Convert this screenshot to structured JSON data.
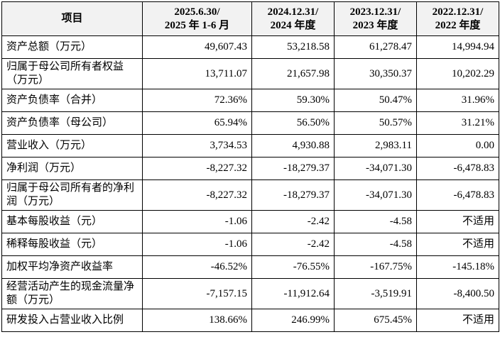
{
  "table": {
    "header": [
      [
        "项目"
      ],
      [
        "2025.6.30/",
        "2025 年 1-6 月"
      ],
      [
        "2024.12.31/",
        "2024 年度"
      ],
      [
        "2023.12.31/",
        "2023 年度"
      ],
      [
        "2022.12.31/",
        "2022 年度"
      ]
    ],
    "rows": [
      [
        "资产总额（万元）",
        "49,607.43",
        "53,218.58",
        "61,278.47",
        "14,994.94"
      ],
      [
        "归属于母公司所有者权益（万元）",
        "13,711.07",
        "21,657.98",
        "30,350.37",
        "10,202.29"
      ],
      [
        "资产负债率（合并）",
        "72.36%",
        "59.30%",
        "50.47%",
        "31.96%"
      ],
      [
        "资产负债率（母公司）",
        "65.94%",
        "56.50%",
        "50.57%",
        "31.21%"
      ],
      [
        "营业收入（万元）",
        "3,734.53",
        "4,930.88",
        "2,983.11",
        "0.00"
      ],
      [
        "净利润（万元）",
        "-8,227.32",
        "-18,279.37",
        "-34,071.30",
        "-6,478.83"
      ],
      [
        "归属于母公司所有者的净利润（万元）",
        "-8,227.32",
        "-18,279.37",
        "-34,071.30",
        "-6,478.83"
      ],
      [
        "基本每股收益（元）",
        "-1.06",
        "-2.42",
        "-4.58",
        "不适用"
      ],
      [
        "稀释每股收益（元）",
        "-1.06",
        "-2.42",
        "-4.58",
        "不适用"
      ],
      [
        "加权平均净资产收益率",
        "-46.52%",
        "-76.55%",
        "-167.75%",
        "-145.18%"
      ],
      [
        "经营活动产生的现金流量净额（万元）",
        "-7,157.15",
        "-11,912.64",
        "-3,519.91",
        "-8,400.50"
      ],
      [
        "研发投入占营业收入比例",
        "138.66%",
        "246.99%",
        "675.45%",
        "不适用"
      ]
    ]
  }
}
